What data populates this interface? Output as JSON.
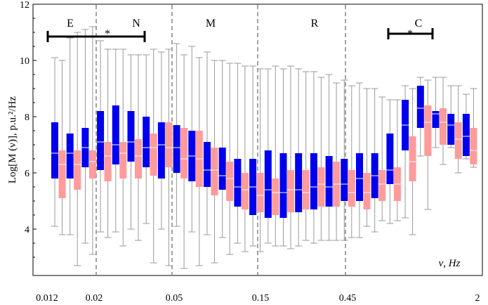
{
  "chart_data": {
    "type": "box",
    "ylabel": "Log[M (ν)], p.u.²/Hz",
    "xlabel": "ν, Hz",
    "ylim": [
      2.35,
      12
    ],
    "y_ticks": [
      4,
      6,
      8,
      10,
      12
    ],
    "x_tick_labels": [
      "0.012",
      "0.02",
      "0.05",
      "0.15",
      "0.45",
      "2"
    ],
    "band_labels": [
      "E",
      "N",
      "M",
      "R",
      "C"
    ],
    "significance_marks": [
      {
        "bands": "E–N",
        "label": "*"
      },
      {
        "bands": "C",
        "label": "*"
      }
    ],
    "series_colors": [
      "#0000ee",
      "#ff9b9b"
    ],
    "series": [
      {
        "color": "#0000ee",
        "boxes": [
          {
            "min": 4.1,
            "q1": 5.8,
            "median": 6.7,
            "q3": 7.8,
            "max": 10.1
          },
          {
            "min": 3.8,
            "q1": 5.8,
            "median": 6.7,
            "q3": 7.4,
            "max": 10.8
          },
          {
            "min": 3.5,
            "q1": 6.2,
            "median": 6.9,
            "q3": 7.6,
            "max": 11.1
          },
          {
            "min": 3.9,
            "q1": 6.1,
            "median": 7.1,
            "q3": 8.2,
            "max": 10.7
          },
          {
            "min": 3.9,
            "q1": 6.3,
            "median": 7.0,
            "q3": 8.4,
            "max": 10.4
          },
          {
            "min": 4.0,
            "q1": 6.4,
            "median": 7.1,
            "q3": 8.2,
            "max": 10.2
          },
          {
            "min": 4.2,
            "q1": 6.2,
            "median": 6.9,
            "q3": 8.0,
            "max": 10.2
          },
          {
            "min": 4.0,
            "q1": 5.8,
            "median": 7.0,
            "q3": 7.8,
            "max": 10.3
          },
          {
            "min": 4.1,
            "q1": 6.0,
            "median": 6.9,
            "q3": 7.7,
            "max": 10.6
          },
          {
            "min": 3.9,
            "q1": 5.7,
            "median": 6.6,
            "q3": 7.5,
            "max": 10.5
          },
          {
            "min": 3.8,
            "q1": 5.5,
            "median": 6.1,
            "q3": 7.1,
            "max": 10.3
          },
          {
            "min": 3.7,
            "q1": 5.4,
            "median": 5.9,
            "q3": 6.9,
            "max": 10.0
          },
          {
            "min": 3.5,
            "q1": 4.8,
            "median": 5.5,
            "q3": 6.5,
            "max": 9.9
          },
          {
            "min": 3.4,
            "q1": 4.5,
            "median": 5.5,
            "q3": 6.5,
            "max": 9.8
          },
          {
            "min": 3.5,
            "q1": 4.4,
            "median": 5.4,
            "q3": 6.8,
            "max": 9.7
          },
          {
            "min": 3.4,
            "q1": 4.4,
            "median": 5.3,
            "q3": 6.7,
            "max": 9.7
          },
          {
            "min": 3.4,
            "q1": 4.6,
            "median": 5.4,
            "q3": 6.7,
            "max": 9.7
          },
          {
            "min": 3.5,
            "q1": 4.7,
            "median": 5.5,
            "q3": 6.7,
            "max": 9.6
          },
          {
            "min": 3.6,
            "q1": 4.8,
            "median": 5.5,
            "q3": 6.6,
            "max": 9.5
          },
          {
            "min": 3.6,
            "q1": 5.0,
            "median": 5.6,
            "q3": 6.5,
            "max": 9.3
          },
          {
            "min": 3.7,
            "q1": 5.0,
            "median": 5.8,
            "q3": 6.7,
            "max": 9.2
          },
          {
            "min": 3.9,
            "q1": 5.1,
            "median": 5.9,
            "q3": 6.7,
            "max": 9.0
          },
          {
            "min": 4.2,
            "q1": 5.6,
            "median": 6.1,
            "q3": 7.4,
            "max": 8.6
          },
          {
            "min": 4.4,
            "q1": 6.8,
            "median": 7.7,
            "q3": 8.6,
            "max": 9.1
          },
          {
            "min": 6.6,
            "q1": 7.6,
            "median": 8.3,
            "q3": 9.1,
            "max": 9.4
          },
          {
            "min": 6.9,
            "q1": 7.6,
            "median": 8.1,
            "q3": 8.2,
            "max": 9.4
          },
          {
            "min": 6.9,
            "q1": 7.0,
            "median": 7.7,
            "q3": 8.1,
            "max": 9.1
          },
          {
            "min": 6.5,
            "q1": 6.6,
            "median": 7.3,
            "q3": 8.1,
            "max": 8.8
          }
        ]
      },
      {
        "color": "#ff9b9b",
        "boxes": [
          {
            "min": 3.8,
            "q1": 5.1,
            "median": 6.3,
            "q3": 6.8,
            "max": 10.0
          },
          {
            "min": 2.7,
            "q1": 5.4,
            "median": 6.3,
            "q3": 6.8,
            "max": 11.0
          },
          {
            "min": 3.1,
            "q1": 5.8,
            "median": 6.4,
            "q3": 6.8,
            "max": 11.2
          },
          {
            "min": 3.7,
            "q1": 5.7,
            "median": 6.6,
            "q3": 7.1,
            "max": 10.4
          },
          {
            "min": 3.4,
            "q1": 5.8,
            "median": 6.7,
            "q3": 7.1,
            "max": 10.4
          },
          {
            "min": 3.6,
            "q1": 5.8,
            "median": 6.6,
            "q3": 7.2,
            "max": 10.2
          },
          {
            "min": 2.8,
            "q1": 5.9,
            "median": 6.9,
            "q3": 7.4,
            "max": 10.4
          },
          {
            "min": 2.7,
            "q1": 6.2,
            "median": 6.9,
            "q3": 7.8,
            "max": 10.4
          },
          {
            "min": 2.6,
            "q1": 5.8,
            "median": 6.5,
            "q3": 7.6,
            "max": 10.2
          },
          {
            "min": 2.7,
            "q1": 5.5,
            "median": 6.5,
            "q3": 7.5,
            "max": 10.1
          },
          {
            "min": 2.8,
            "q1": 5.2,
            "median": 6.1,
            "q3": 6.9,
            "max": 10.0
          },
          {
            "min": 3.1,
            "q1": 5.0,
            "median": 5.8,
            "q3": 6.4,
            "max": 9.9
          },
          {
            "min": 3.2,
            "q1": 4.7,
            "median": 5.4,
            "q3": 6.0,
            "max": 9.8
          },
          {
            "min": 3.2,
            "q1": 4.6,
            "median": 5.2,
            "q3": 6.0,
            "max": 9.7
          },
          {
            "min": 3.4,
            "q1": 4.5,
            "median": 5.3,
            "q3": 5.8,
            "max": 9.8
          },
          {
            "min": 3.3,
            "q1": 4.6,
            "median": 5.4,
            "q3": 6.1,
            "max": 9.8
          },
          {
            "min": 3.6,
            "q1": 4.7,
            "median": 5.3,
            "q3": 6.1,
            "max": 9.6
          },
          {
            "min": 3.6,
            "q1": 4.8,
            "median": 5.6,
            "q3": 6.2,
            "max": 9.4
          },
          {
            "min": 3.6,
            "q1": 4.8,
            "median": 5.6,
            "q3": 6.4,
            "max": 9.2
          },
          {
            "min": 3.7,
            "q1": 4.8,
            "median": 5.3,
            "q3": 6.1,
            "max": 9.1
          },
          {
            "min": 4.1,
            "q1": 4.7,
            "median": 5.3,
            "q3": 6.0,
            "max": 9.0
          },
          {
            "min": 4.3,
            "q1": 5.0,
            "median": 5.6,
            "q3": 6.1,
            "max": 8.7
          },
          {
            "min": 4.3,
            "q1": 5.0,
            "median": 5.6,
            "q3": 6.2,
            "max": 8.6
          },
          {
            "min": 3.8,
            "q1": 5.7,
            "median": 6.4,
            "q3": 7.3,
            "max": 9.0
          },
          {
            "min": 4.7,
            "q1": 6.6,
            "median": 7.8,
            "q3": 8.4,
            "max": 9.3
          },
          {
            "min": 6.3,
            "q1": 7.0,
            "median": 7.8,
            "q3": 8.3,
            "max": 9.4
          },
          {
            "min": 6.0,
            "q1": 6.5,
            "median": 7.2,
            "q3": 7.8,
            "max": 9.1
          },
          {
            "min": 6.2,
            "q1": 6.3,
            "median": 6.8,
            "q3": 7.6,
            "max": 9.0
          }
        ]
      }
    ]
  }
}
